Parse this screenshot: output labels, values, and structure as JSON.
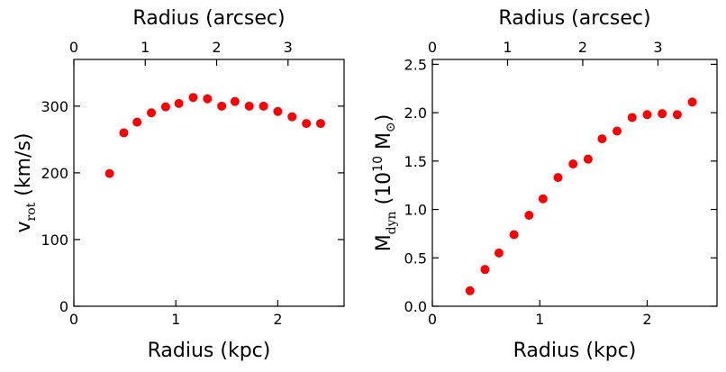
{
  "chart_data": [
    {
      "type": "scatter",
      "xlabel": "Radius  (kpc)",
      "x2label": "Radius  (arcsec)",
      "ylabel": {
        "main": "v",
        "sub": "rot",
        "unit": " (km/s)"
      },
      "xlim": [
        0,
        2.65
      ],
      "x2lim": [
        0,
        3.785
      ],
      "ylim": [
        0,
        370
      ],
      "xticks": [
        "0",
        "1",
        "2"
      ],
      "x2ticks": [
        "0",
        "1",
        "2",
        "3"
      ],
      "yticks": [
        "0",
        "100",
        "200",
        "300"
      ],
      "grid": false,
      "marker_color": "#ff0000",
      "x": [
        0.35,
        0.49,
        0.62,
        0.76,
        0.9,
        1.03,
        1.17,
        1.31,
        1.45,
        1.58,
        1.72,
        1.86,
        2.0,
        2.14,
        2.28,
        2.42
      ],
      "y": [
        199,
        260,
        276,
        290,
        299,
        304,
        313,
        311,
        300,
        307,
        300,
        300,
        292,
        284,
        274,
        274
      ]
    },
    {
      "type": "scatter",
      "xlabel": "Radius  (kpc)",
      "x2label": "Radius  (arcsec)",
      "ylabel": {
        "main": "M",
        "sub": "dyn",
        "unit_pre": "  (10",
        "sup": "10",
        "unit_mid": " M",
        "unit_sym": "⊙",
        "unit_post": ")"
      },
      "xlim": [
        0,
        2.65
      ],
      "x2lim": [
        0,
        3.785
      ],
      "ylim": [
        0,
        2.55
      ],
      "xticks": [
        "0",
        "1",
        "2"
      ],
      "x2ticks": [
        "0",
        "1",
        "2",
        "3"
      ],
      "yticks": [
        "0.0",
        "0.5",
        "1.0",
        "1.5",
        "2.0",
        "2.5"
      ],
      "grid": false,
      "marker_color": "#ff0000",
      "x": [
        0.35,
        0.49,
        0.62,
        0.76,
        0.9,
        1.03,
        1.17,
        1.31,
        1.45,
        1.58,
        1.72,
        1.86,
        2.0,
        2.14,
        2.28,
        2.42
      ],
      "y": [
        0.16,
        0.38,
        0.55,
        0.74,
        0.94,
        1.11,
        1.33,
        1.47,
        1.52,
        1.73,
        1.81,
        1.95,
        1.98,
        1.99,
        1.98,
        2.11
      ]
    }
  ]
}
